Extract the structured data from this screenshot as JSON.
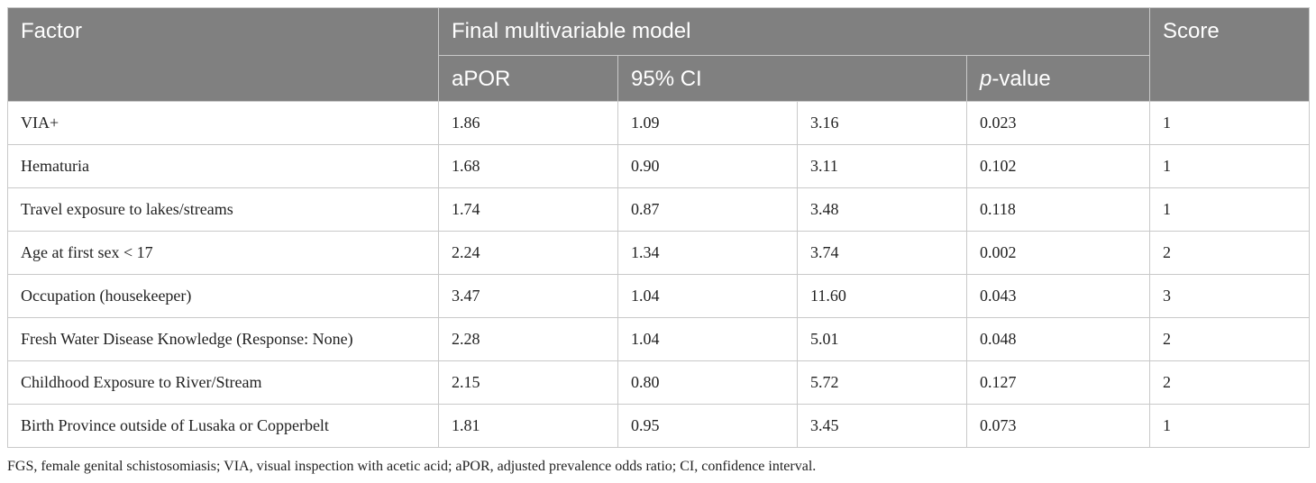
{
  "table": {
    "headers": {
      "factor": "Factor",
      "model": "Final multivariable model",
      "score": "Score",
      "apor": "aPOR",
      "ci": "95% CI",
      "p_italic": "p",
      "p_rest": "-value"
    },
    "rows": [
      {
        "factor": "VIA+",
        "apor": "1.86",
        "ci_low": "1.09",
        "ci_high": "3.16",
        "p": "0.023",
        "score": "1"
      },
      {
        "factor": "Hematuria",
        "apor": "1.68",
        "ci_low": "0.90",
        "ci_high": "3.11",
        "p": "0.102",
        "score": "1"
      },
      {
        "factor": "Travel exposure to lakes/streams",
        "apor": "1.74",
        "ci_low": "0.87",
        "ci_high": "3.48",
        "p": "0.118",
        "score": "1"
      },
      {
        "factor": "Age at first sex < 17",
        "apor": "2.24",
        "ci_low": "1.34",
        "ci_high": "3.74",
        "p": "0.002",
        "score": "2"
      },
      {
        "factor": "Occupation (housekeeper)",
        "apor": "3.47",
        "ci_low": "1.04",
        "ci_high": "11.60",
        "p": "0.043",
        "score": "3"
      },
      {
        "factor": "Fresh Water Disease Knowledge (Response: None)",
        "apor": "2.28",
        "ci_low": "1.04",
        "ci_high": "5.01",
        "p": "0.048",
        "score": "2"
      },
      {
        "factor": "Childhood Exposure to River/Stream",
        "apor": "2.15",
        "ci_low": "0.80",
        "ci_high": "5.72",
        "p": "0.127",
        "score": "2"
      },
      {
        "factor": "Birth Province outside of Lusaka or Copperbelt",
        "apor": "1.81",
        "ci_low": "0.95",
        "ci_high": "3.45",
        "p": "0.073",
        "score": "1"
      }
    ]
  },
  "footnote": "FGS, female genital schistosomiasis; VIA, visual inspection with acetic acid; aPOR, adjusted prevalence odds ratio; CI, confidence interval."
}
